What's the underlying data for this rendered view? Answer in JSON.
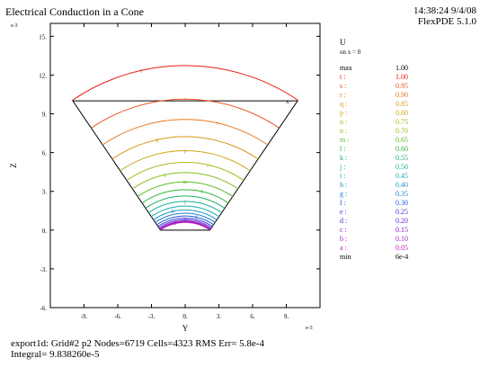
{
  "header": {
    "title": "Electrical Conduction in a Cone",
    "time_date": "14:38:24 9/4/08",
    "version": "FlexPDE 5.1.0"
  },
  "chart_data": {
    "type": "contour",
    "title": "Electrical Conduction in a Cone",
    "xlabel": "Y",
    "ylabel": "Z",
    "x_scale_label": "e-3",
    "y_scale_label": "e-3",
    "xlim": [
      -12,
      12
    ],
    "ylim": [
      -6,
      16
    ],
    "x_ticks": [
      -9,
      -6,
      -3,
      0,
      3,
      6,
      9
    ],
    "y_ticks": [
      -6,
      -3,
      0,
      3,
      6,
      9,
      12,
      15
    ],
    "x_tick_labels": [
      "-9.",
      "-6.",
      "-3.",
      "0.",
      "3.",
      "6.",
      "9."
    ],
    "y_tick_labels": [
      "-6.",
      "-3.",
      "0.",
      "3.",
      "6.",
      "9.",
      "12.",
      "15."
    ],
    "domain_outline": [
      [
        -10,
        10
      ],
      [
        10,
        10
      ],
      [
        2.2,
        0
      ],
      [
        -2.2,
        0
      ]
    ],
    "contour_levels": [
      {
        "label": "t",
        "value": 1.0,
        "color": "#e81c12",
        "z": 10.05
      },
      {
        "label": "s",
        "value": 0.95,
        "color": "#e8541c",
        "z": 7.9
      },
      {
        "label": "r",
        "value": 0.9,
        "color": "#e8781c",
        "z": 6.6
      },
      {
        "label": "q",
        "value": 0.85,
        "color": "#d89618",
        "z": 5.5
      },
      {
        "label": "p",
        "value": 0.8,
        "color": "#c8a818",
        "z": 4.6
      },
      {
        "label": "o",
        "value": 0.75,
        "color": "#b0b41c",
        "z": 3.85
      },
      {
        "label": "n",
        "value": 0.7,
        "color": "#88bc20",
        "z": 3.2
      },
      {
        "label": "m",
        "value": 0.65,
        "color": "#5cbc24",
        "z": 2.6
      },
      {
        "label": "l",
        "value": 0.6,
        "color": "#30b43c",
        "z": 2.1
      },
      {
        "label": "k",
        "value": 0.55,
        "color": "#1cb068",
        "z": 1.7
      },
      {
        "label": "j",
        "value": 0.5,
        "color": "#18b094",
        "z": 1.35
      },
      {
        "label": "i",
        "value": 0.45,
        "color": "#18acb4",
        "z": 1.05
      },
      {
        "label": "h",
        "value": 0.4,
        "color": "#1898c8",
        "z": 0.8
      },
      {
        "label": "g",
        "value": 0.35,
        "color": "#1c7cd0",
        "z": 0.6
      },
      {
        "label": "f",
        "value": 0.3,
        "color": "#2058d8",
        "z": 0.42
      },
      {
        "label": "e",
        "value": 0.25,
        "color": "#3c34d8",
        "z": 0.28
      },
      {
        "label": "d",
        "value": 0.2,
        "color": "#6024d0",
        "z": 0.17
      },
      {
        "label": "c",
        "value": 0.15,
        "color": "#8420c8",
        "z": 0.09
      },
      {
        "label": "b",
        "value": 0.1,
        "color": "#a41cc0",
        "z": 0.04
      },
      {
        "label": "a",
        "value": 0.05,
        "color": "#c018b4",
        "z": 0.01
      }
    ],
    "plot_annotation": "x",
    "grid": false
  },
  "legend": {
    "title": "U",
    "subtitle": "on x = 0",
    "max_label": "max",
    "max_value": "1.00",
    "min_label": "min",
    "min_value": "6e-4"
  },
  "footer": {
    "line1": "export1d:  Grid#2  p2  Nodes=6719 Cells=4323 RMS Err= 5.8e-4",
    "line2": "Integral=  9.838260e-5"
  }
}
